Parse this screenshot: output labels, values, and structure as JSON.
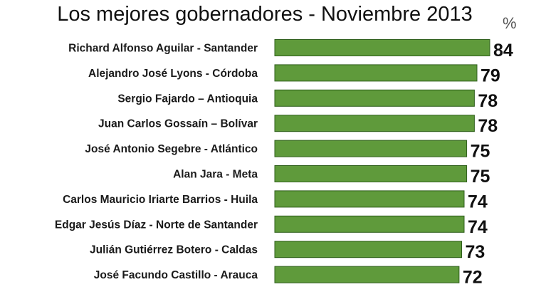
{
  "chart_data": {
    "type": "bar",
    "orientation": "horizontal",
    "title": "Los mejores gobernadores - Noviembre 2013",
    "unit": "%",
    "categories": [
      "Richard Alfonso Aguilar - Santander",
      "Alejandro José Lyons - Córdoba",
      "Sergio Fajardo – Antioquia",
      "Juan Carlos Gossaín – Bolívar",
      "José Antonio Segebre - Atlántico",
      "Alan Jara - Meta",
      "Carlos Mauricio Iriarte Barrios - Huila",
      "Edgar Jesús Díaz - Norte de Santander",
      "Julián Gutiérrez Botero  - Caldas",
      "José Facundo Castillo - Arauca"
    ],
    "values": [
      84,
      79,
      78,
      78,
      75,
      75,
      74,
      74,
      73,
      72
    ],
    "value_labels": [
      "84",
      "79",
      "78",
      "78",
      "75",
      "75",
      "74",
      "74",
      "73",
      "72"
    ],
    "bar_color": "#5f9a3b",
    "bar_border_color": "#2f5f1c",
    "grid": false,
    "legend": "none"
  }
}
